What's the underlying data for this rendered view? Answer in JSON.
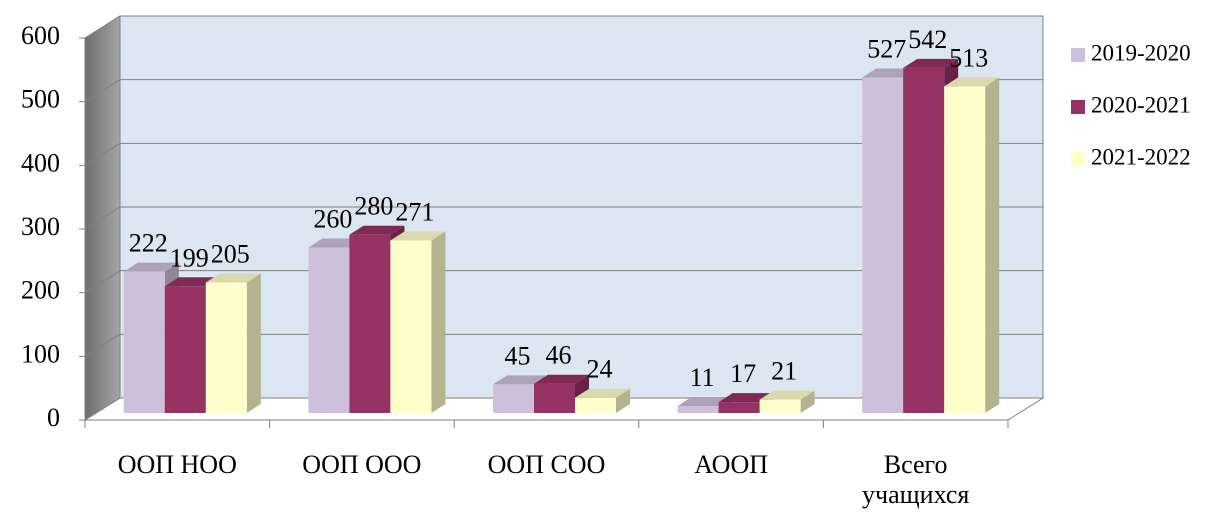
{
  "chart_data": {
    "type": "bar3d",
    "categories": [
      "ООП НОО",
      "ООП ООО",
      "ООП СОО",
      "АООП",
      "Всего учащихся"
    ],
    "series": [
      {
        "name": "2019-2020",
        "color": "#ccc0da",
        "values": [
          222,
          260,
          45,
          11,
          527
        ]
      },
      {
        "name": "2020-2021",
        "color": "#953163",
        "values": [
          199,
          280,
          46,
          17,
          542
        ]
      },
      {
        "name": "2021-2022",
        "color": "#ffffcc",
        "values": [
          205,
          271,
          24,
          21,
          513
        ]
      }
    ],
    "ylim": [
      0,
      600
    ],
    "yticks": [
      0,
      100,
      200,
      300,
      400,
      500,
      600
    ],
    "grid": true,
    "legend": "right"
  }
}
